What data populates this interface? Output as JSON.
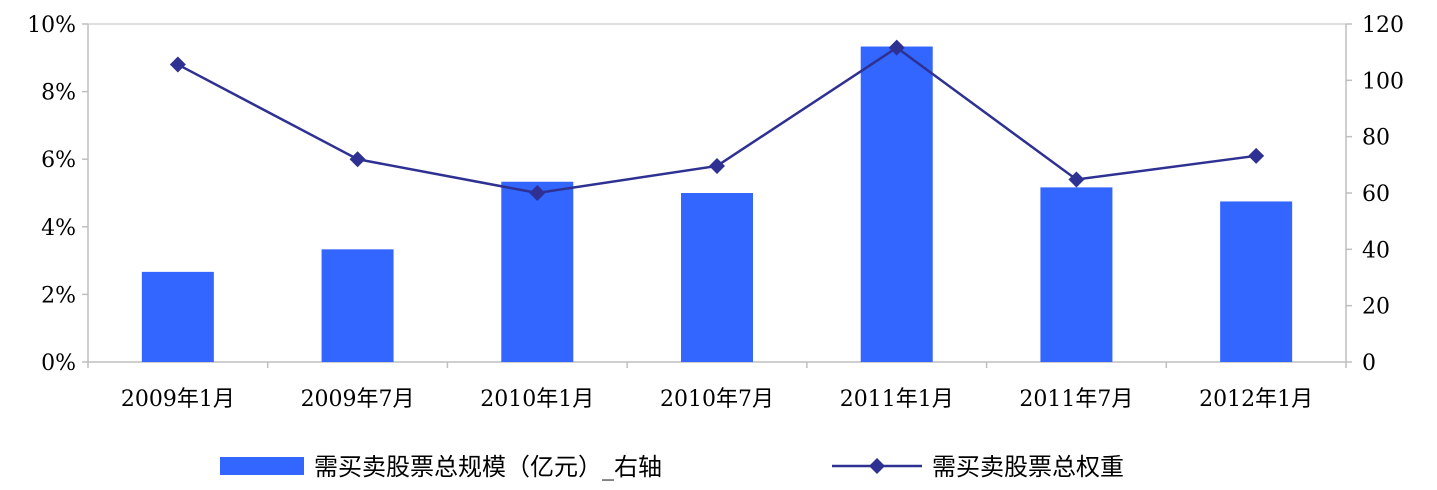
{
  "colors": {
    "bar": "#3366FF",
    "line": "#2E3192",
    "axis": "#BFBFBF",
    "text": "#000000"
  },
  "chart_data": {
    "type": "bar",
    "categories": [
      "2009年1月",
      "2009年7月",
      "2010年1月",
      "2010年7月",
      "2011年1月",
      "2011年7月",
      "2012年1月"
    ],
    "series": [
      {
        "name": "需买卖股票总规模（亿元）_右轴",
        "type": "bar",
        "axis": "right",
        "values": [
          32,
          40,
          64,
          60,
          112,
          62,
          57
        ]
      },
      {
        "name": "需买卖股票总权重",
        "type": "line",
        "axis": "left",
        "marker": "diamond",
        "values": [
          0.088,
          0.06,
          0.05,
          0.058,
          0.093,
          0.054,
          0.061
        ]
      }
    ],
    "y_left": {
      "ylim": [
        0,
        0.1
      ],
      "ticks": [
        0,
        0.02,
        0.04,
        0.06,
        0.08,
        0.1
      ],
      "tick_labels": [
        "0%",
        "2%",
        "4%",
        "6%",
        "8%",
        "10%"
      ]
    },
    "y_right": {
      "ylim": [
        0,
        120
      ],
      "ticks": [
        0,
        20,
        40,
        60,
        80,
        100,
        120
      ],
      "tick_labels": [
        "0",
        "20",
        "40",
        "60",
        "80",
        "100",
        "120"
      ]
    },
    "title": "",
    "xlabel": "",
    "ylabel": "",
    "grid": false,
    "legend_position": "bottom"
  }
}
